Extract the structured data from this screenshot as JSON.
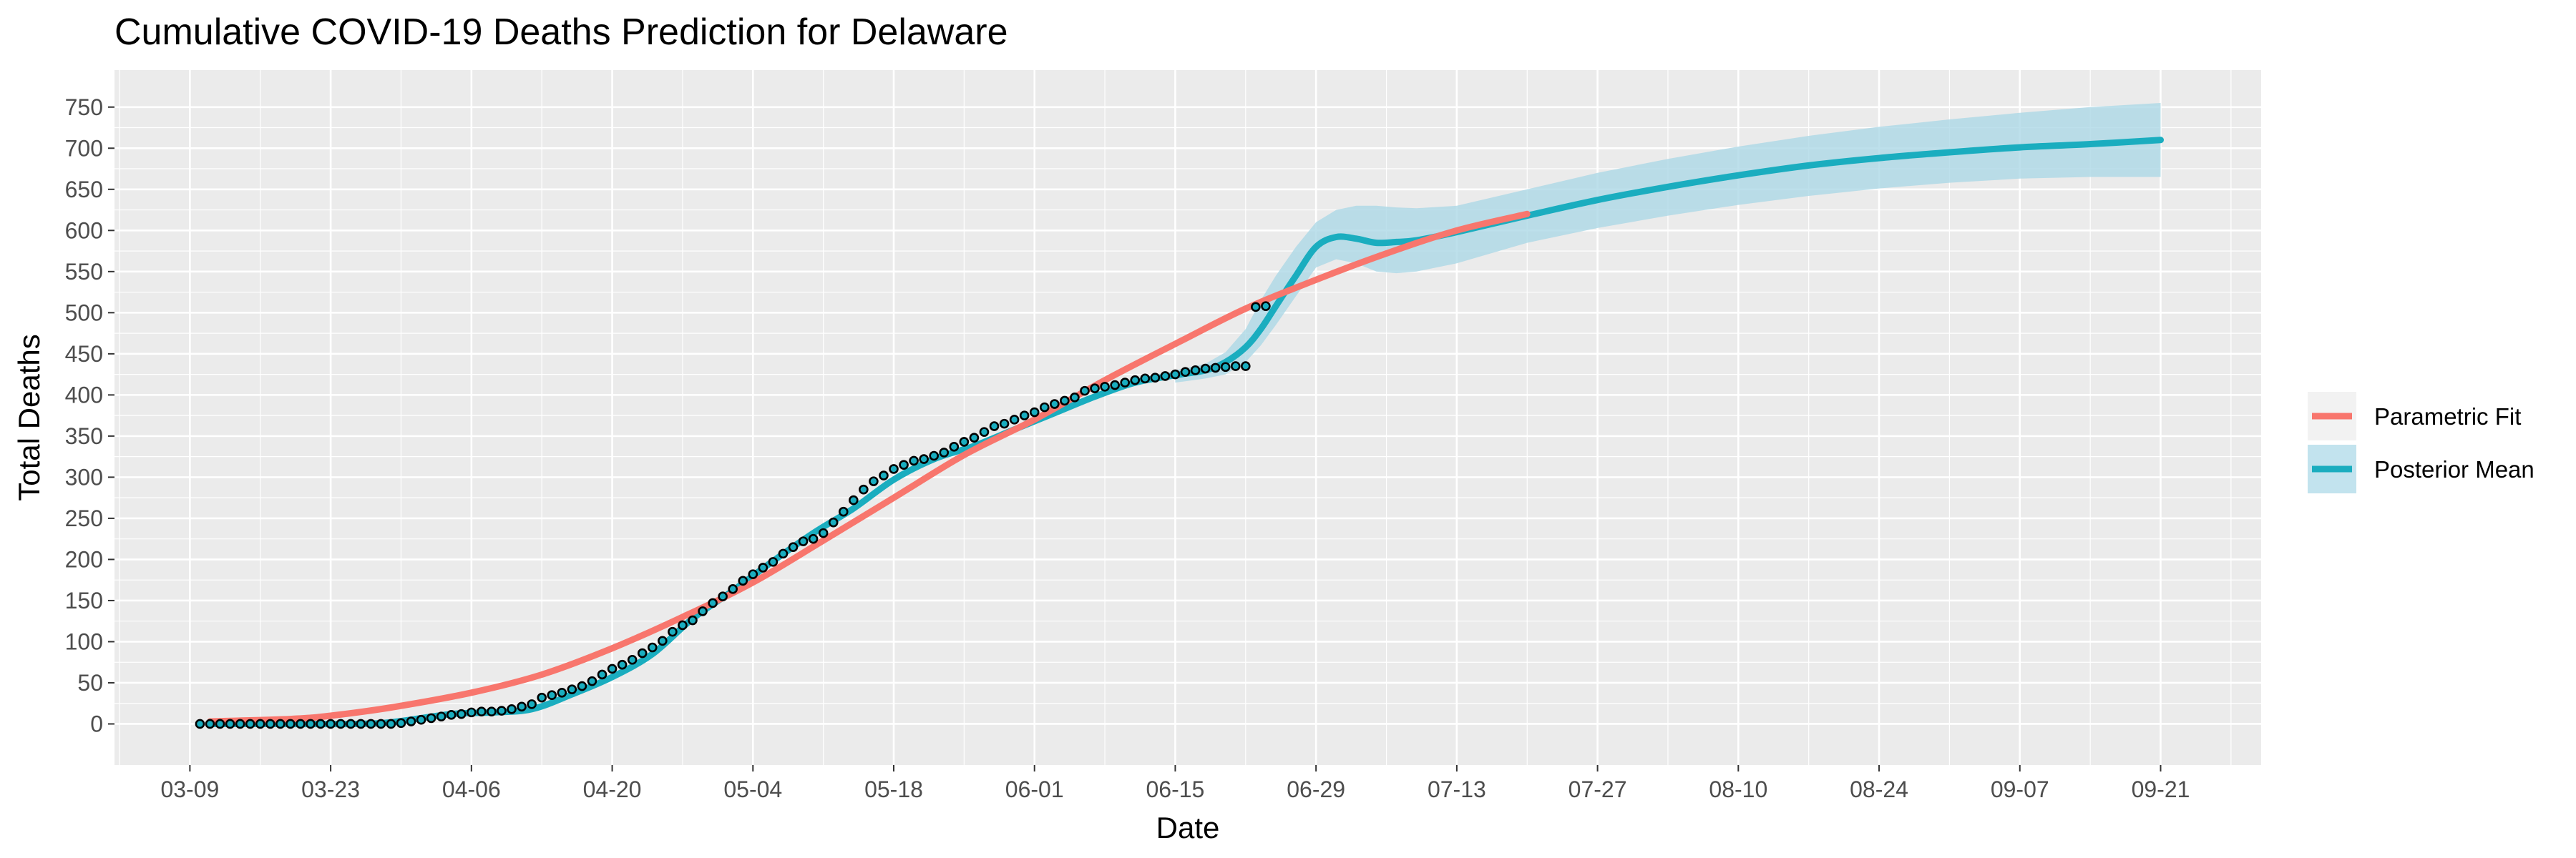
{
  "chart_data": {
    "type": "line",
    "title": "Cumulative COVID-19 Deaths Prediction for Delaware",
    "xlabel": "Date",
    "ylabel": "Total Deaths",
    "x_tick_labels": [
      "03-09",
      "03-23",
      "04-06",
      "04-20",
      "05-04",
      "05-18",
      "06-01",
      "06-15",
      "06-29",
      "07-13",
      "07-27",
      "08-10",
      "08-24",
      "09-07",
      "09-21"
    ],
    "x_tick_days": [
      0,
      14,
      28,
      42,
      56,
      70,
      84,
      98,
      112,
      126,
      140,
      154,
      168,
      182,
      196
    ],
    "y_ticks": [
      0,
      50,
      100,
      150,
      200,
      250,
      300,
      350,
      400,
      450,
      500,
      550,
      600,
      650,
      700,
      750
    ],
    "x_range_days": [
      -7.5,
      206
    ],
    "ylim": [
      -50,
      795
    ],
    "grid": true,
    "legend": {
      "position": "right",
      "entries": [
        {
          "name": "Parametric Fit",
          "color": "#F8766D"
        },
        {
          "name": "Posterior Mean",
          "color": "#00BFC4"
        }
      ]
    },
    "colors": {
      "parametric": "#F8766D",
      "posterior": "#1AADBF",
      "band": "#ADD8E6",
      "panel": "#EBEBEB",
      "grid": "#FFFFFF",
      "point_fill": "#1AADBF",
      "point_stroke": "#000000"
    },
    "series": [
      {
        "name": "Parametric Fit",
        "x_days": [
          2,
          10,
          14,
          20,
          28,
          35,
          42,
          49,
          56,
          63,
          70,
          77,
          84,
          91,
          98,
          105,
          112,
          119,
          126,
          133
        ],
        "values": [
          3,
          6,
          10,
          20,
          38,
          60,
          92,
          130,
          172,
          223,
          275,
          327,
          370,
          418,
          462,
          505,
          540,
          572,
          600,
          620
        ]
      },
      {
        "name": "Posterior Mean",
        "x_days": [
          2,
          8,
          16,
          20,
          26,
          30,
          34,
          38,
          42,
          46,
          50,
          54,
          58,
          62,
          66,
          70,
          74,
          78,
          82,
          86,
          90,
          94,
          98,
          101,
          103,
          105,
          106.5,
          108,
          110,
          112,
          114,
          116,
          118,
          120,
          122,
          126,
          133,
          140,
          147,
          154,
          161,
          168,
          175,
          182,
          189,
          196
        ],
        "values": [
          0,
          0,
          0,
          2,
          12,
          14,
          18,
          36,
          57,
          85,
          128,
          162,
          198,
          232,
          262,
          297,
          322,
          338,
          358,
          378,
          398,
          415,
          424,
          430,
          440,
          458,
          480,
          508,
          545,
          580,
          592,
          590,
          585,
          586,
          588,
          598,
          618,
          637,
          653,
          667,
          679,
          688,
          695,
          701,
          705,
          710
        ]
      }
    ],
    "band": {
      "name": "Posterior Mean 95% interval",
      "x_days": [
        98,
        101,
        103,
        105,
        106.5,
        108,
        110,
        112,
        114,
        116,
        118,
        120,
        122,
        126,
        133,
        140,
        147,
        154,
        161,
        168,
        175,
        182,
        189,
        196
      ],
      "upper": [
        430,
        438,
        452,
        480,
        515,
        545,
        580,
        610,
        625,
        630,
        630,
        628,
        627,
        630,
        650,
        670,
        687,
        702,
        715,
        726,
        735,
        743,
        750,
        755
      ],
      "lower": [
        415,
        420,
        425,
        440,
        460,
        485,
        520,
        555,
        565,
        560,
        550,
        548,
        550,
        560,
        585,
        603,
        618,
        631,
        642,
        651,
        658,
        663,
        665,
        665
      ]
    },
    "observed": {
      "x_days": [
        1,
        2,
        3,
        4,
        5,
        6,
        7,
        8,
        9,
        10,
        11,
        12,
        13,
        14,
        15,
        16,
        17,
        18,
        19,
        20,
        21,
        22,
        23,
        24,
        25,
        26,
        27,
        28,
        29,
        30,
        31,
        32,
        33,
        34,
        35,
        36,
        37,
        38,
        39,
        40,
        41,
        42,
        43,
        44,
        45,
        46,
        47,
        48,
        49,
        50,
        51,
        52,
        53,
        54,
        55,
        56,
        57,
        58,
        59,
        60,
        61,
        62,
        63,
        64,
        65,
        66,
        67,
        68,
        69,
        70,
        71,
        72,
        73,
        74,
        75,
        76,
        77,
        78,
        79,
        80,
        81,
        82,
        83,
        84,
        85,
        86,
        87,
        88,
        89,
        90,
        91,
        92,
        93,
        94,
        95,
        96,
        97,
        98,
        99,
        100,
        101,
        102,
        103,
        104,
        105,
        106,
        107
      ],
      "values": [
        0,
        0,
        0,
        0,
        0,
        0,
        0,
        0,
        0,
        0,
        0,
        0,
        0,
        0,
        0,
        0,
        0,
        0,
        0,
        0,
        1,
        3,
        5,
        7,
        9,
        11,
        12,
        14,
        15,
        15,
        16,
        18,
        21,
        24,
        32,
        35,
        38,
        42,
        46,
        52,
        60,
        67,
        72,
        78,
        86,
        93,
        101,
        112,
        120,
        126,
        137,
        147,
        155,
        164,
        174,
        182,
        190,
        197,
        207,
        215,
        222,
        225,
        232,
        245,
        258,
        272,
        285,
        295,
        302,
        310,
        315,
        320,
        322,
        326,
        330,
        337,
        343,
        348,
        355,
        362,
        365,
        370,
        375,
        379,
        385,
        389,
        393,
        397,
        405,
        408,
        410,
        412,
        415,
        418,
        420,
        421,
        423,
        425,
        428,
        430,
        432,
        433,
        434,
        435,
        435,
        507,
        508
      ]
    }
  }
}
